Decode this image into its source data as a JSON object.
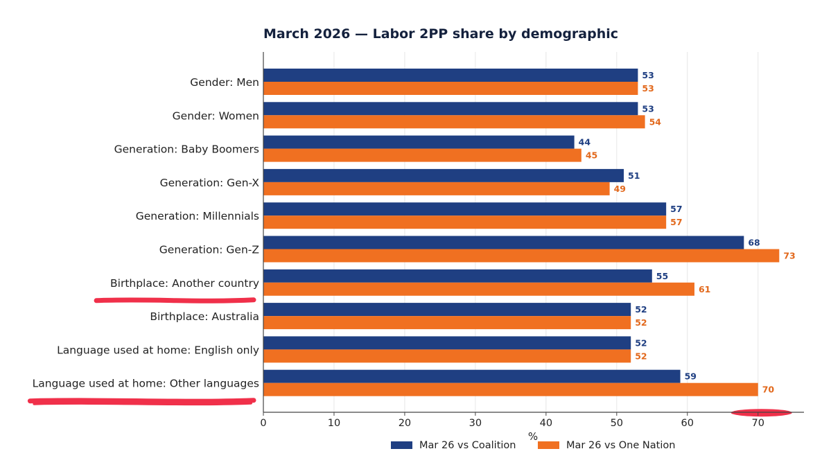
{
  "chart_data": {
    "type": "bar",
    "orientation": "horizontal",
    "title": "March 2026 — Labor 2PP share by demographic",
    "xlabel": "%",
    "ylabel": "",
    "xlim": [
      0,
      76.5
    ],
    "xticks": [
      0,
      10,
      20,
      30,
      40,
      50,
      60,
      70
    ],
    "grid": "vertical",
    "legend_position": "bottom",
    "categories": [
      "Gender: Men",
      "Gender: Women",
      "Generation: Baby Boomers",
      "Generation: Gen-X",
      "Generation: Millennials",
      "Generation: Gen-Z",
      "Birthplace: Another country",
      "Birthplace: Australia",
      "Language used at home: English only",
      "Language used at home: Other languages"
    ],
    "series": [
      {
        "name": "Mar 26 vs Coalition",
        "color": "#1f3f82",
        "label_color": "#1f3f82",
        "values": [
          53,
          53,
          44,
          51,
          57,
          68,
          55,
          52,
          52,
          59
        ]
      },
      {
        "name": "Mar 26 vs One Nation",
        "color": "#f07021",
        "label_color": "#e2691d",
        "values": [
          53,
          54,
          45,
          49,
          57,
          73,
          61,
          52,
          52,
          70
        ]
      }
    ],
    "annotations": {
      "highlight_color": "#f0304a",
      "underlined_categories": [
        "Birthplace: Another country",
        "Language used at home: Other languages"
      ],
      "underlined_values": [
        {
          "series": 1,
          "category": "Language used at home: Other languages"
        }
      ]
    }
  }
}
